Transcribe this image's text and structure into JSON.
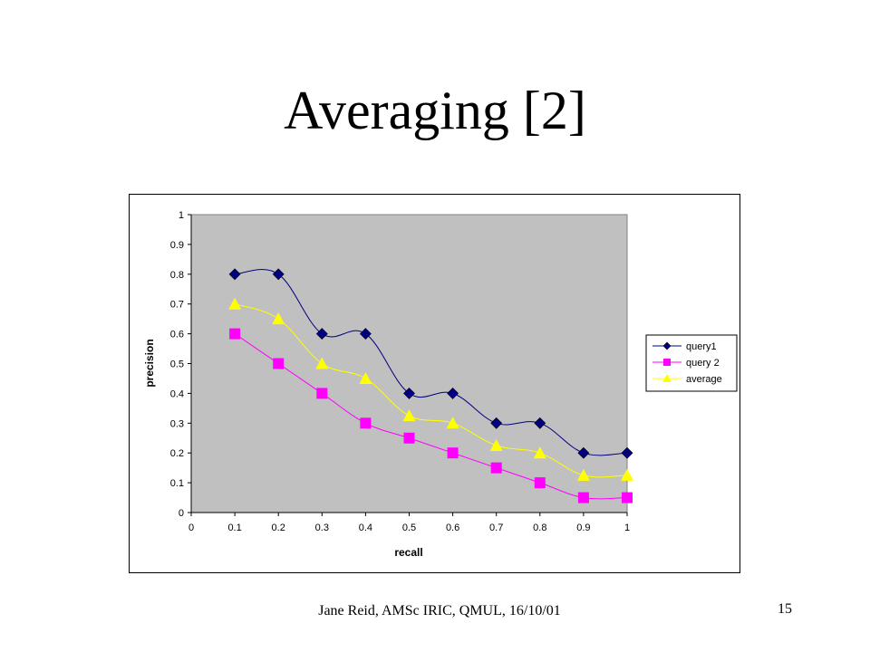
{
  "slide": {
    "title": "Averaging [2]",
    "footer": "Jane Reid, AMSc IRIC, QMUL, 16/10/01",
    "page_number": "15"
  },
  "chart_data": {
    "type": "line",
    "title": "",
    "xlabel": "recall",
    "ylabel": "precision",
    "xlim": [
      0,
      1
    ],
    "ylim": [
      0,
      1
    ],
    "x": [
      0.1,
      0.2,
      0.3,
      0.4,
      0.5,
      0.6,
      0.7,
      0.8,
      0.9,
      1.0
    ],
    "x_ticks": [
      "0",
      "0.1",
      "0.2",
      "0.3",
      "0.4",
      "0.5",
      "0.6",
      "0.7",
      "0.8",
      "0.9",
      "1"
    ],
    "y_ticks": [
      "0",
      "0.1",
      "0.2",
      "0.3",
      "0.4",
      "0.5",
      "0.6",
      "0.7",
      "0.8",
      "0.9",
      "1"
    ],
    "grid": false,
    "plot_background": "#c0c0c0",
    "legend_position": "right",
    "series": [
      {
        "name": "query1",
        "values": [
          0.8,
          0.8,
          0.6,
          0.6,
          0.4,
          0.4,
          0.3,
          0.3,
          0.2,
          0.2
        ],
        "color": "#000080",
        "marker": "diamond"
      },
      {
        "name": "query 2",
        "values": [
          0.6,
          0.5,
          0.4,
          0.3,
          0.25,
          0.2,
          0.15,
          0.1,
          0.05,
          0.05
        ],
        "color": "#ff00ff",
        "marker": "square"
      },
      {
        "name": "average",
        "values": [
          0.7,
          0.65,
          0.5,
          0.45,
          0.325,
          0.3,
          0.225,
          0.2,
          0.125,
          0.125
        ],
        "color": "#ffff00",
        "marker": "triangle"
      }
    ]
  }
}
